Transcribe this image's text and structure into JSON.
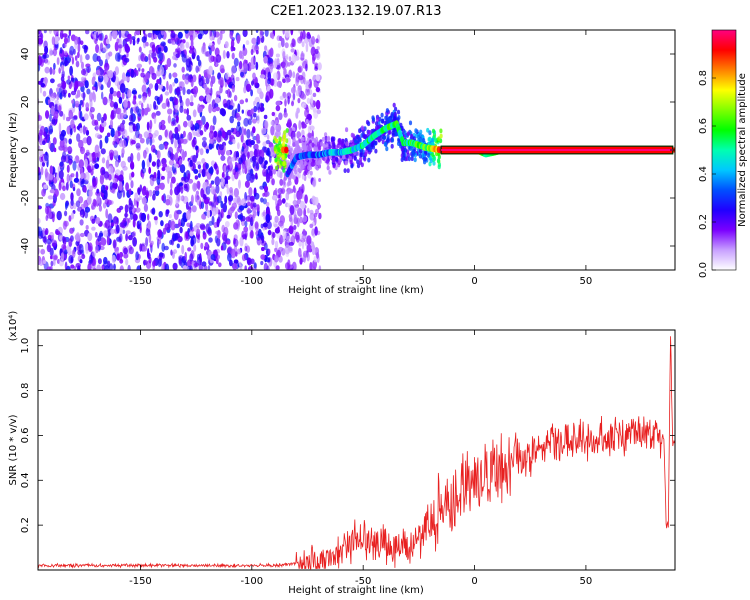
{
  "title": "C2E1.2023.132.19.07.R13",
  "colorbar": {
    "label": "Normalized spectral amplitude",
    "range": [
      0,
      1
    ],
    "ticks": [
      0.0,
      0.2,
      0.4,
      0.6,
      0.8
    ],
    "tick_labels": [
      "0.0",
      "0.2",
      "0.4",
      "0.6",
      "0.8"
    ],
    "colors": [
      "#ffffff",
      "#c8a0ff",
      "#7a00ff",
      "#2000ff",
      "#0050ff",
      "#00c8ff",
      "#00ffb0",
      "#00ff00",
      "#80ff00",
      "#ffff00",
      "#ff8000",
      "#ff0000",
      "#ff0080"
    ]
  },
  "chart_data": [
    {
      "type": "heatmap",
      "title": "C2E1.2023.132.19.07.R13",
      "xlabel": "Height of straight line (km)",
      "ylabel": "Frequency (Hz)",
      "xlim": [
        -196,
        90
      ],
      "ylim": [
        -50,
        50
      ],
      "xticks": [
        -150,
        -100,
        -50,
        0,
        50
      ],
      "xtick_labels": [
        "-150",
        "-100",
        "-50",
        "0",
        "50"
      ],
      "yticks": [
        -40,
        -20,
        0,
        20,
        40
      ],
      "ytick_labels": [
        "-40",
        "-20",
        "0",
        "20",
        "40"
      ],
      "zlabel": "Normalized spectral amplitude",
      "zlim": [
        0,
        1
      ],
      "ridge": [
        {
          "x": -84,
          "y": -10,
          "z": 0.3
        },
        {
          "x": -80,
          "y": -3,
          "z": 0.3
        },
        {
          "x": -75,
          "y": -2,
          "z": 0.32
        },
        {
          "x": -70,
          "y": -2,
          "z": 0.35
        },
        {
          "x": -65,
          "y": -1,
          "z": 0.38
        },
        {
          "x": -60,
          "y": -1,
          "z": 0.42
        },
        {
          "x": -55,
          "y": 0,
          "z": 0.45
        },
        {
          "x": -50,
          "y": 2,
          "z": 0.48
        },
        {
          "x": -45,
          "y": 6,
          "z": 0.5
        },
        {
          "x": -40,
          "y": 9,
          "z": 0.52
        },
        {
          "x": -35,
          "y": 11,
          "z": 0.55
        },
        {
          "x": -32,
          "y": 3,
          "z": 0.5
        },
        {
          "x": -28,
          "y": 3,
          "z": 0.55
        },
        {
          "x": -22,
          "y": 1,
          "z": 0.6
        },
        {
          "x": -15,
          "y": 0,
          "z": 0.9
        },
        {
          "x": 0,
          "y": 0,
          "z": 0.92
        },
        {
          "x": 5,
          "y": -2,
          "z": 0.5
        },
        {
          "x": 10,
          "y": -1,
          "z": 0.6
        },
        {
          "x": 15,
          "y": 0,
          "z": 0.92
        },
        {
          "x": 40,
          "y": 0,
          "z": 0.93
        },
        {
          "x": 60,
          "y": 0,
          "z": 0.93
        },
        {
          "x": 75,
          "y": 0,
          "z": 0.92
        },
        {
          "x": 89,
          "y": 0,
          "z": 0.85
        }
      ]
    },
    {
      "type": "line",
      "xlabel": "Height of straight line (km)",
      "ylabel": "SNR (10 * v/v)",
      "y_multiplier": "(x10⁴)",
      "xlim": [
        -196,
        90
      ],
      "ylim": [
        0,
        1.07
      ],
      "xticks": [
        -150,
        -100,
        -50,
        0,
        50
      ],
      "xtick_labels": [
        "-150",
        "-100",
        "-50",
        "0",
        "50"
      ],
      "yticks": [
        0.2,
        0.4,
        0.6,
        0.8,
        1.0
      ],
      "ytick_labels": [
        "0.2",
        "0.4",
        "0.6",
        "0.8",
        "1.0"
      ],
      "color": "#e82020",
      "series": [
        {
          "x": [
            -196,
            -180,
            -160,
            -140,
            -120,
            -100,
            -90,
            -80,
            -70,
            -65,
            -60,
            -55,
            -50,
            -45,
            -40,
            -35,
            -30,
            -25,
            -20,
            -15,
            -10,
            -5,
            0,
            5,
            10,
            15,
            20,
            25,
            30,
            35,
            40,
            45,
            50,
            55,
            60,
            65,
            70,
            75,
            80,
            83,
            85,
            86,
            87,
            88,
            89,
            90
          ],
          "y": [
            0.02,
            0.02,
            0.02,
            0.02,
            0.02,
            0.02,
            0.02,
            0.03,
            0.04,
            0.05,
            0.08,
            0.12,
            0.15,
            0.14,
            0.12,
            0.1,
            0.1,
            0.12,
            0.2,
            0.26,
            0.33,
            0.38,
            0.4,
            0.42,
            0.44,
            0.45,
            0.48,
            0.51,
            0.55,
            0.57,
            0.57,
            0.58,
            0.58,
            0.59,
            0.59,
            0.6,
            0.61,
            0.61,
            0.59,
            0.58,
            0.6,
            0.2,
            0.2,
            1.05,
            0.55,
            0.6
          ]
        }
      ]
    }
  ]
}
